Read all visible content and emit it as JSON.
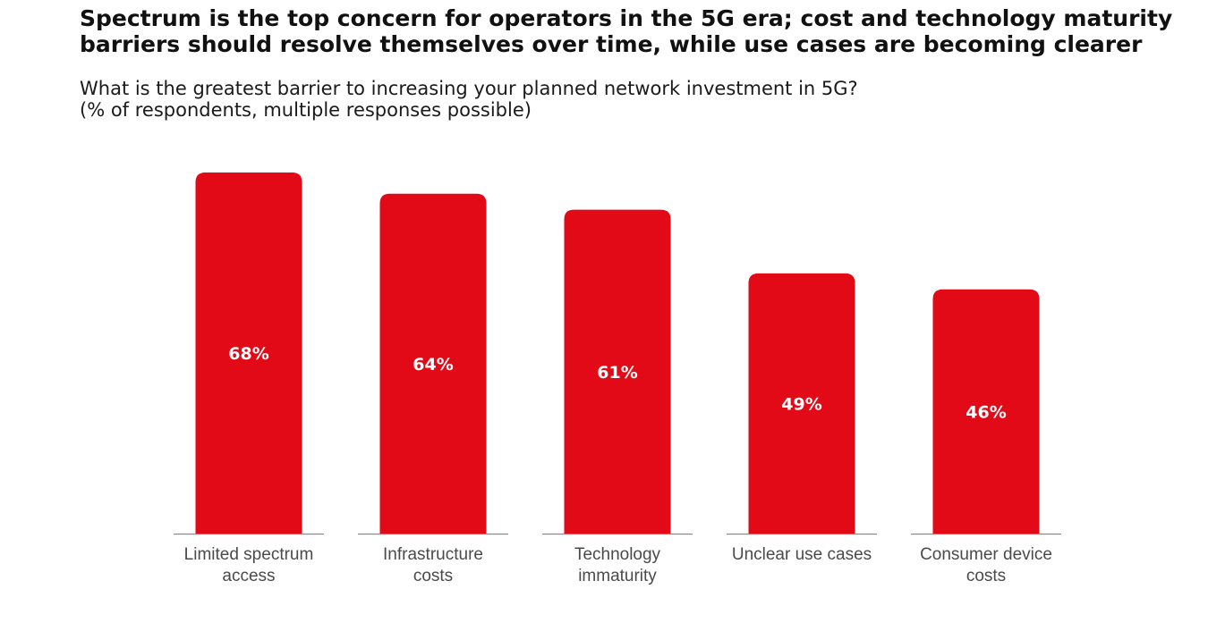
{
  "chart_data": {
    "type": "bar",
    "title_lines": [
      "Spectrum is the top concern for operators in the 5G era; cost and technology maturity",
      "barriers should resolve themselves over time, while use cases are becoming clearer"
    ],
    "subtitle_lines": [
      "What is the greatest barrier to increasing your planned network investment in 5G?",
      "(% of respondents, multiple responses possible)"
    ],
    "categories": [
      [
        "Limited spectrum",
        "access"
      ],
      [
        "Infrastructure",
        "costs"
      ],
      [
        "Technology",
        "immaturity"
      ],
      [
        "Unclear use cases"
      ],
      [
        "Consumer device",
        "costs"
      ]
    ],
    "values": [
      68,
      64,
      61,
      49,
      46
    ],
    "value_labels": [
      "68%",
      "64%",
      "61%",
      "49%",
      "46%"
    ],
    "unit": "%",
    "ylim": [
      0,
      68
    ],
    "grid": false,
    "legend": "none",
    "bar_color": "#e20a16",
    "baseline_color": "#8a8a8a",
    "label_color": "#4a4a4a"
  }
}
